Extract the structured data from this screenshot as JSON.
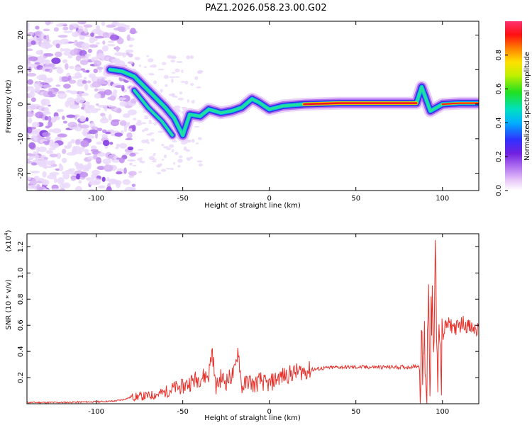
{
  "chart_data": [
    {
      "type": "heatmap",
      "title": "PAZ1.2026.058.23.00.G02",
      "xlabel": "Height of straight line (km)",
      "ylabel": "Frequency (Hz)",
      "xlim": [
        -140,
        121
      ],
      "ylim": [
        -25,
        24
      ],
      "x_ticks": [
        -100,
        -50,
        0,
        50,
        100
      ],
      "y_ticks": [
        20,
        10,
        0,
        -10,
        -20
      ],
      "colorbar": {
        "label": "Normalized spectral amplitude",
        "range": [
          0,
          1
        ],
        "ticks": [
          "0.0",
          "0.2",
          "0.4",
          "0.6",
          "0.8"
        ]
      },
      "ridge": [
        {
          "x": -92,
          "y": 10
        },
        {
          "x": -85,
          "y": 9.5
        },
        {
          "x": -78,
          "y": 8
        },
        {
          "x": -72,
          "y": 5
        },
        {
          "x": -66,
          "y": 2
        },
        {
          "x": -60,
          "y": -1
        },
        {
          "x": -55,
          "y": -4
        },
        {
          "x": -50,
          "y": -9
        },
        {
          "x": -46,
          "y": -3
        },
        {
          "x": -40,
          "y": -3.5
        },
        {
          "x": -35,
          "y": -1.5
        },
        {
          "x": -28,
          "y": -2.5
        },
        {
          "x": -22,
          "y": -2
        },
        {
          "x": -16,
          "y": -1
        },
        {
          "x": -10,
          "y": 1.5
        },
        {
          "x": -6,
          "y": 0.5
        },
        {
          "x": 0,
          "y": -1.5
        },
        {
          "x": 8,
          "y": -0.5
        },
        {
          "x": 20,
          "y": 0
        },
        {
          "x": 40,
          "y": 0.3
        },
        {
          "x": 60,
          "y": 0.3
        },
        {
          "x": 85,
          "y": 0.3
        },
        {
          "x": 88,
          "y": 5
        },
        {
          "x": 93,
          "y": -2
        },
        {
          "x": 100,
          "y": 0
        },
        {
          "x": 110,
          "y": 0.3
        },
        {
          "x": 121,
          "y": 0.3
        }
      ],
      "secondary_ridge": [
        {
          "x": -78,
          "y": 4
        },
        {
          "x": -70,
          "y": -1
        },
        {
          "x": -62,
          "y": -5
        },
        {
          "x": -56,
          "y": -9
        }
      ]
    },
    {
      "type": "line",
      "xlabel": "Height of straight line (km)",
      "ylabel": "SNR (10 * v/v)",
      "multiplier": "(x10",
      "multiplier_exp": "4",
      "multiplier_close": ")",
      "xlim": [
        -140,
        121
      ],
      "ylim": [
        0,
        1.3
      ],
      "x_ticks": [
        -100,
        -50,
        0,
        50,
        100
      ],
      "y_ticks": [
        0.2,
        0.4,
        0.6,
        0.8,
        1.0,
        1.2
      ],
      "line_color": "#e8302a",
      "series": [
        {
          "name": "SNR",
          "points": [
            [
              -140,
              0.01
            ],
            [
              -120,
              0.01
            ],
            [
              -100,
              0.015
            ],
            [
              -90,
              0.02
            ],
            [
              -85,
              0.03
            ],
            [
              -80,
              0.05
            ],
            [
              -70,
              0.06
            ],
            [
              -62,
              0.08
            ],
            [
              -55,
              0.12
            ],
            [
              -50,
              0.13
            ],
            [
              -45,
              0.17
            ],
            [
              -40,
              0.2
            ],
            [
              -35,
              0.22
            ],
            [
              -33,
              0.42
            ],
            [
              -31,
              0.12
            ],
            [
              -28,
              0.2
            ],
            [
              -25,
              0.17
            ],
            [
              -20,
              0.24
            ],
            [
              -18,
              0.43
            ],
            [
              -16,
              0.12
            ],
            [
              -12,
              0.18
            ],
            [
              -9,
              0.14
            ],
            [
              -5,
              0.18
            ],
            [
              -2,
              0.15
            ],
            [
              0,
              0.15
            ],
            [
              5,
              0.2
            ],
            [
              10,
              0.22
            ],
            [
              15,
              0.24
            ],
            [
              20,
              0.25
            ],
            [
              25,
              0.26
            ],
            [
              30,
              0.27
            ],
            [
              40,
              0.28
            ],
            [
              50,
              0.28
            ],
            [
              60,
              0.28
            ],
            [
              70,
              0.28
            ],
            [
              80,
              0.28
            ],
            [
              86,
              0.29
            ],
            [
              88,
              0.24
            ],
            [
              90,
              0.45
            ],
            [
              91,
              0.05
            ],
            [
              92,
              1.1
            ],
            [
              93,
              0.08
            ],
            [
              94,
              0.95
            ],
            [
              95,
              0.02
            ],
            [
              96,
              1.3
            ],
            [
              97,
              0.05
            ],
            [
              98,
              0.9
            ],
            [
              99,
              0.2
            ],
            [
              100,
              0.5
            ],
            [
              102,
              0.6
            ],
            [
              105,
              0.6
            ],
            [
              108,
              0.58
            ],
            [
              112,
              0.62
            ],
            [
              116,
              0.58
            ],
            [
              121,
              0.56
            ]
          ]
        }
      ]
    }
  ]
}
